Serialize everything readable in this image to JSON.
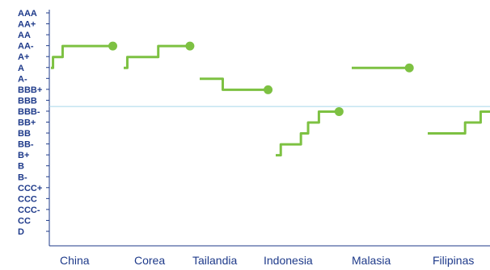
{
  "chart_data": {
    "type": "line",
    "title": "",
    "xlabel": "",
    "ylabel": "",
    "y_categories": [
      "AAA",
      "AA+",
      "AA",
      "AA-",
      "A+",
      "A",
      "A-",
      "BBB+",
      "BBB",
      "BBB-",
      "BB+",
      "BB",
      "BB-",
      "B+",
      "B",
      "B-",
      "CCC+",
      "CCC",
      "CCC-",
      "CC",
      "D"
    ],
    "categories": [
      "China",
      "Corea",
      "Tailandia",
      "Indonesia",
      "Malasia",
      "Filipinas"
    ],
    "reference_line": {
      "rating": "BBB",
      "position": "between BBB and BBB-",
      "color": "#a8d8ea"
    },
    "grid": false,
    "legend": "none",
    "line_color": "#7dc142",
    "series": [
      {
        "category": "China",
        "values": [
          [
            0,
            "A"
          ],
          [
            0.03,
            "A+"
          ],
          [
            0.12,
            "A+"
          ],
          [
            0.15,
            "A+"
          ],
          [
            0.17,
            "AA-"
          ],
          [
            0.55,
            "AA-"
          ],
          [
            0.6,
            "AA-"
          ],
          [
            0.9,
            "AA-"
          ]
        ],
        "end_marker": true
      },
      {
        "category": "Corea",
        "values": [
          [
            0,
            "A"
          ],
          [
            0.05,
            "A+"
          ],
          [
            0.45,
            "A+"
          ],
          [
            0.48,
            "AA-"
          ],
          [
            0.85,
            "AA-"
          ],
          [
            0.88,
            "AA-"
          ],
          [
            0.92,
            "AA-"
          ]
        ],
        "end_marker": true
      },
      {
        "category": "Tailandia",
        "values": [
          [
            0,
            "A-"
          ],
          [
            0.3,
            "A-"
          ],
          [
            0.32,
            "BBB+"
          ],
          [
            0.9,
            "BBB+"
          ],
          [
            0.95,
            "BBB+"
          ]
        ],
        "end_marker": true
      },
      {
        "category": "Indonesia",
        "values": [
          [
            0,
            "B+"
          ],
          [
            0.07,
            "BB-"
          ],
          [
            0.35,
            "BB"
          ],
          [
            0.45,
            "BB+"
          ],
          [
            0.6,
            "BBB-"
          ],
          [
            0.75,
            "BBB-"
          ],
          [
            0.88,
            "BBB-"
          ]
        ],
        "end_marker": true
      },
      {
        "category": "Malasia",
        "values": [
          [
            0,
            "A"
          ],
          [
            0.8,
            "A"
          ]
        ],
        "end_marker": true
      },
      {
        "category": "Filipinas",
        "values": [
          [
            0,
            "BB"
          ],
          [
            0.3,
            "BB"
          ],
          [
            0.35,
            "BB"
          ],
          [
            0.55,
            "BB"
          ],
          [
            0.6,
            "BB+"
          ],
          [
            0.8,
            "BB+"
          ],
          [
            0.85,
            "BBB-"
          ],
          [
            1.0,
            "BBB-"
          ]
        ],
        "end_marker": false
      }
    ]
  }
}
